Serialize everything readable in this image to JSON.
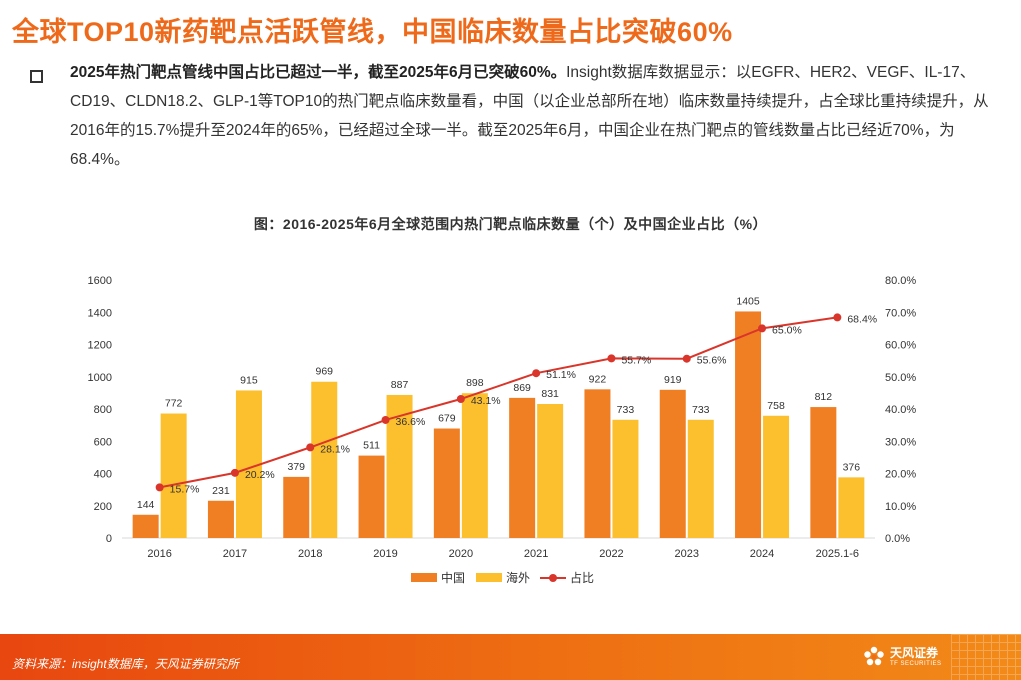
{
  "page": {
    "title": "全球TOP10新药靶点活跃管线，中国临床数量占比突破60%",
    "summary_lead": "2025年热门靶点管线中国占比已超过一半，截至2025年6月已突破60%。",
    "summary_body": "Insight数据库数据显示：以EGFR、HER2、VEGF、IL-17、CD19、CLDN18.2、GLP-1等TOP10的热门靶点临床数量看，中国（以企业总部所在地）临床数量持续提升，占全球比重持续提升，从2016年的15.7%提升至2024年的65%，已经超过全球一半。截至2025年6月，中国企业在热门靶点的管线数量占比已经近70%，为68.4%。",
    "source": "资料来源：insight数据库，天风证券研究所",
    "brand_cn": "天风证券",
    "brand_en": "TF SECURITIES"
  },
  "colors": {
    "accent": "#ee6a1a",
    "china": "#f07f24",
    "overseas": "#fcbf2e",
    "ratio": "#d9352a"
  },
  "chart_data": {
    "type": "bar",
    "title": "图：2016-2025年6月全球范围内热门靶点临床数量（个）及中国企业占比（%）",
    "categories": [
      "2016",
      "2017",
      "2018",
      "2019",
      "2020",
      "2021",
      "2022",
      "2023",
      "2024",
      "2025.1-6"
    ],
    "series": [
      {
        "name": "中国",
        "type": "bar",
        "axis": "left",
        "values": [
          144,
          231,
          379,
          511,
          679,
          869,
          922,
          919,
          1405,
          812
        ]
      },
      {
        "name": "海外",
        "type": "bar",
        "axis": "left",
        "values": [
          772,
          915,
          969,
          887,
          898,
          831,
          733,
          733,
          758,
          376
        ]
      },
      {
        "name": "占比",
        "type": "line",
        "axis": "right",
        "values": [
          15.7,
          20.2,
          28.1,
          36.6,
          43.1,
          51.1,
          55.7,
          55.6,
          65.0,
          68.4
        ],
        "labels": [
          "15.7%",
          "20.2%",
          "28.1%",
          "36.6%",
          "43.1%",
          "51.1%",
          "55.7%",
          "55.6%",
          "65.0%",
          "68.4%"
        ]
      }
    ],
    "ylim": [
      0,
      1600
    ],
    "yticks": [
      "0",
      "200",
      "400",
      "600",
      "800",
      "1000",
      "1200",
      "1400",
      "1600"
    ],
    "y2lim": [
      0,
      80
    ],
    "y2ticks": [
      "0.0%",
      "10.0%",
      "20.0%",
      "30.0%",
      "40.0%",
      "50.0%",
      "60.0%",
      "70.0%",
      "80.0%"
    ],
    "legend_position": "bottom",
    "grid": false
  }
}
